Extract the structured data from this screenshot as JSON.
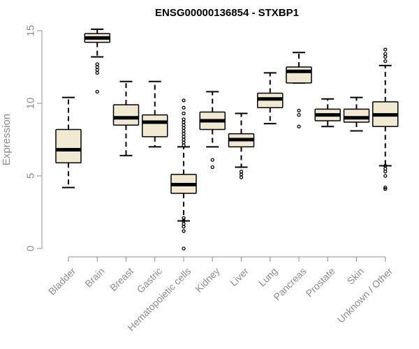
{
  "chart_data": {
    "type": "boxplot",
    "title": "ENSG00000136854 - STXBP1",
    "xlabel": "",
    "ylabel": "Expression",
    "ylim": [
      0,
      15
    ],
    "yticks": [
      0,
      5,
      10,
      15
    ],
    "grid": false,
    "colors": {
      "box_fill": "#f0ead2",
      "stroke": "#000000",
      "axis": "#8c8c8c"
    },
    "categories": [
      "Bladder",
      "Brain",
      "Breast",
      "Gastric",
      "Hematopoietic cells",
      "Kidney",
      "Liver",
      "Lung",
      "Pancreas",
      "Prostate",
      "Skin",
      "Unknown / Other"
    ],
    "boxes": [
      {
        "category": "Bladder",
        "whisker_low": 4.2,
        "q1": 5.9,
        "median": 6.8,
        "q3": 8.2,
        "whisker_high": 10.4,
        "outliers": []
      },
      {
        "category": "Brain",
        "whisker_low": 13.2,
        "q1": 14.2,
        "median": 14.5,
        "q3": 14.8,
        "whisker_high": 15.1,
        "outliers": [
          12.1,
          12.3,
          12.5,
          12.7,
          10.8
        ]
      },
      {
        "category": "Breast",
        "whisker_low": 6.4,
        "q1": 8.5,
        "median": 9.0,
        "q3": 9.9,
        "whisker_high": 11.5,
        "outliers": []
      },
      {
        "category": "Gastric",
        "whisker_low": 7.0,
        "q1": 7.7,
        "median": 8.7,
        "q3": 9.2,
        "whisker_high": 11.5,
        "outliers": []
      },
      {
        "category": "Hematopoietic cells",
        "whisker_low": 1.9,
        "q1": 3.8,
        "median": 4.4,
        "q3": 5.1,
        "whisker_high": 7.0,
        "outliers": [
          0.0,
          1.2,
          1.5,
          1.7,
          1.9,
          2.1,
          7.1,
          7.3,
          7.5,
          7.7,
          7.9,
          8.1,
          8.3,
          8.5,
          8.7,
          8.9,
          9.3,
          9.7,
          10.2
        ]
      },
      {
        "category": "Kidney",
        "whisker_low": 7.0,
        "q1": 8.2,
        "median": 8.8,
        "q3": 9.4,
        "whisker_high": 10.8,
        "outliers": [
          5.6,
          6.1
        ]
      },
      {
        "category": "Liver",
        "whisker_low": 5.6,
        "q1": 7.0,
        "median": 7.5,
        "q3": 7.9,
        "whisker_high": 9.3,
        "outliers": [
          4.9,
          5.1,
          5.3
        ]
      },
      {
        "category": "Lung",
        "whisker_low": 8.6,
        "q1": 9.7,
        "median": 10.3,
        "q3": 10.7,
        "whisker_high": 12.1,
        "outliers": []
      },
      {
        "category": "Pancreas",
        "whisker_low": 11.4,
        "q1": 11.4,
        "median": 12.2,
        "q3": 12.5,
        "whisker_high": 13.5,
        "outliers": [
          8.4,
          9.2,
          9.5
        ]
      },
      {
        "category": "Prostate",
        "whisker_low": 8.4,
        "q1": 8.8,
        "median": 9.2,
        "q3": 9.6,
        "whisker_high": 10.3,
        "outliers": []
      },
      {
        "category": "Skin",
        "whisker_low": 8.1,
        "q1": 8.7,
        "median": 9.0,
        "q3": 9.6,
        "whisker_high": 10.4,
        "outliers": []
      },
      {
        "category": "Unknown / Other",
        "whisker_low": 5.7,
        "q1": 8.4,
        "median": 9.2,
        "q3": 10.1,
        "whisker_high": 12.6,
        "outliers": [
          4.1,
          4.2,
          5.0,
          5.3,
          5.5,
          5.7,
          12.9,
          13.2,
          13.4,
          13.7
        ]
      }
    ]
  }
}
